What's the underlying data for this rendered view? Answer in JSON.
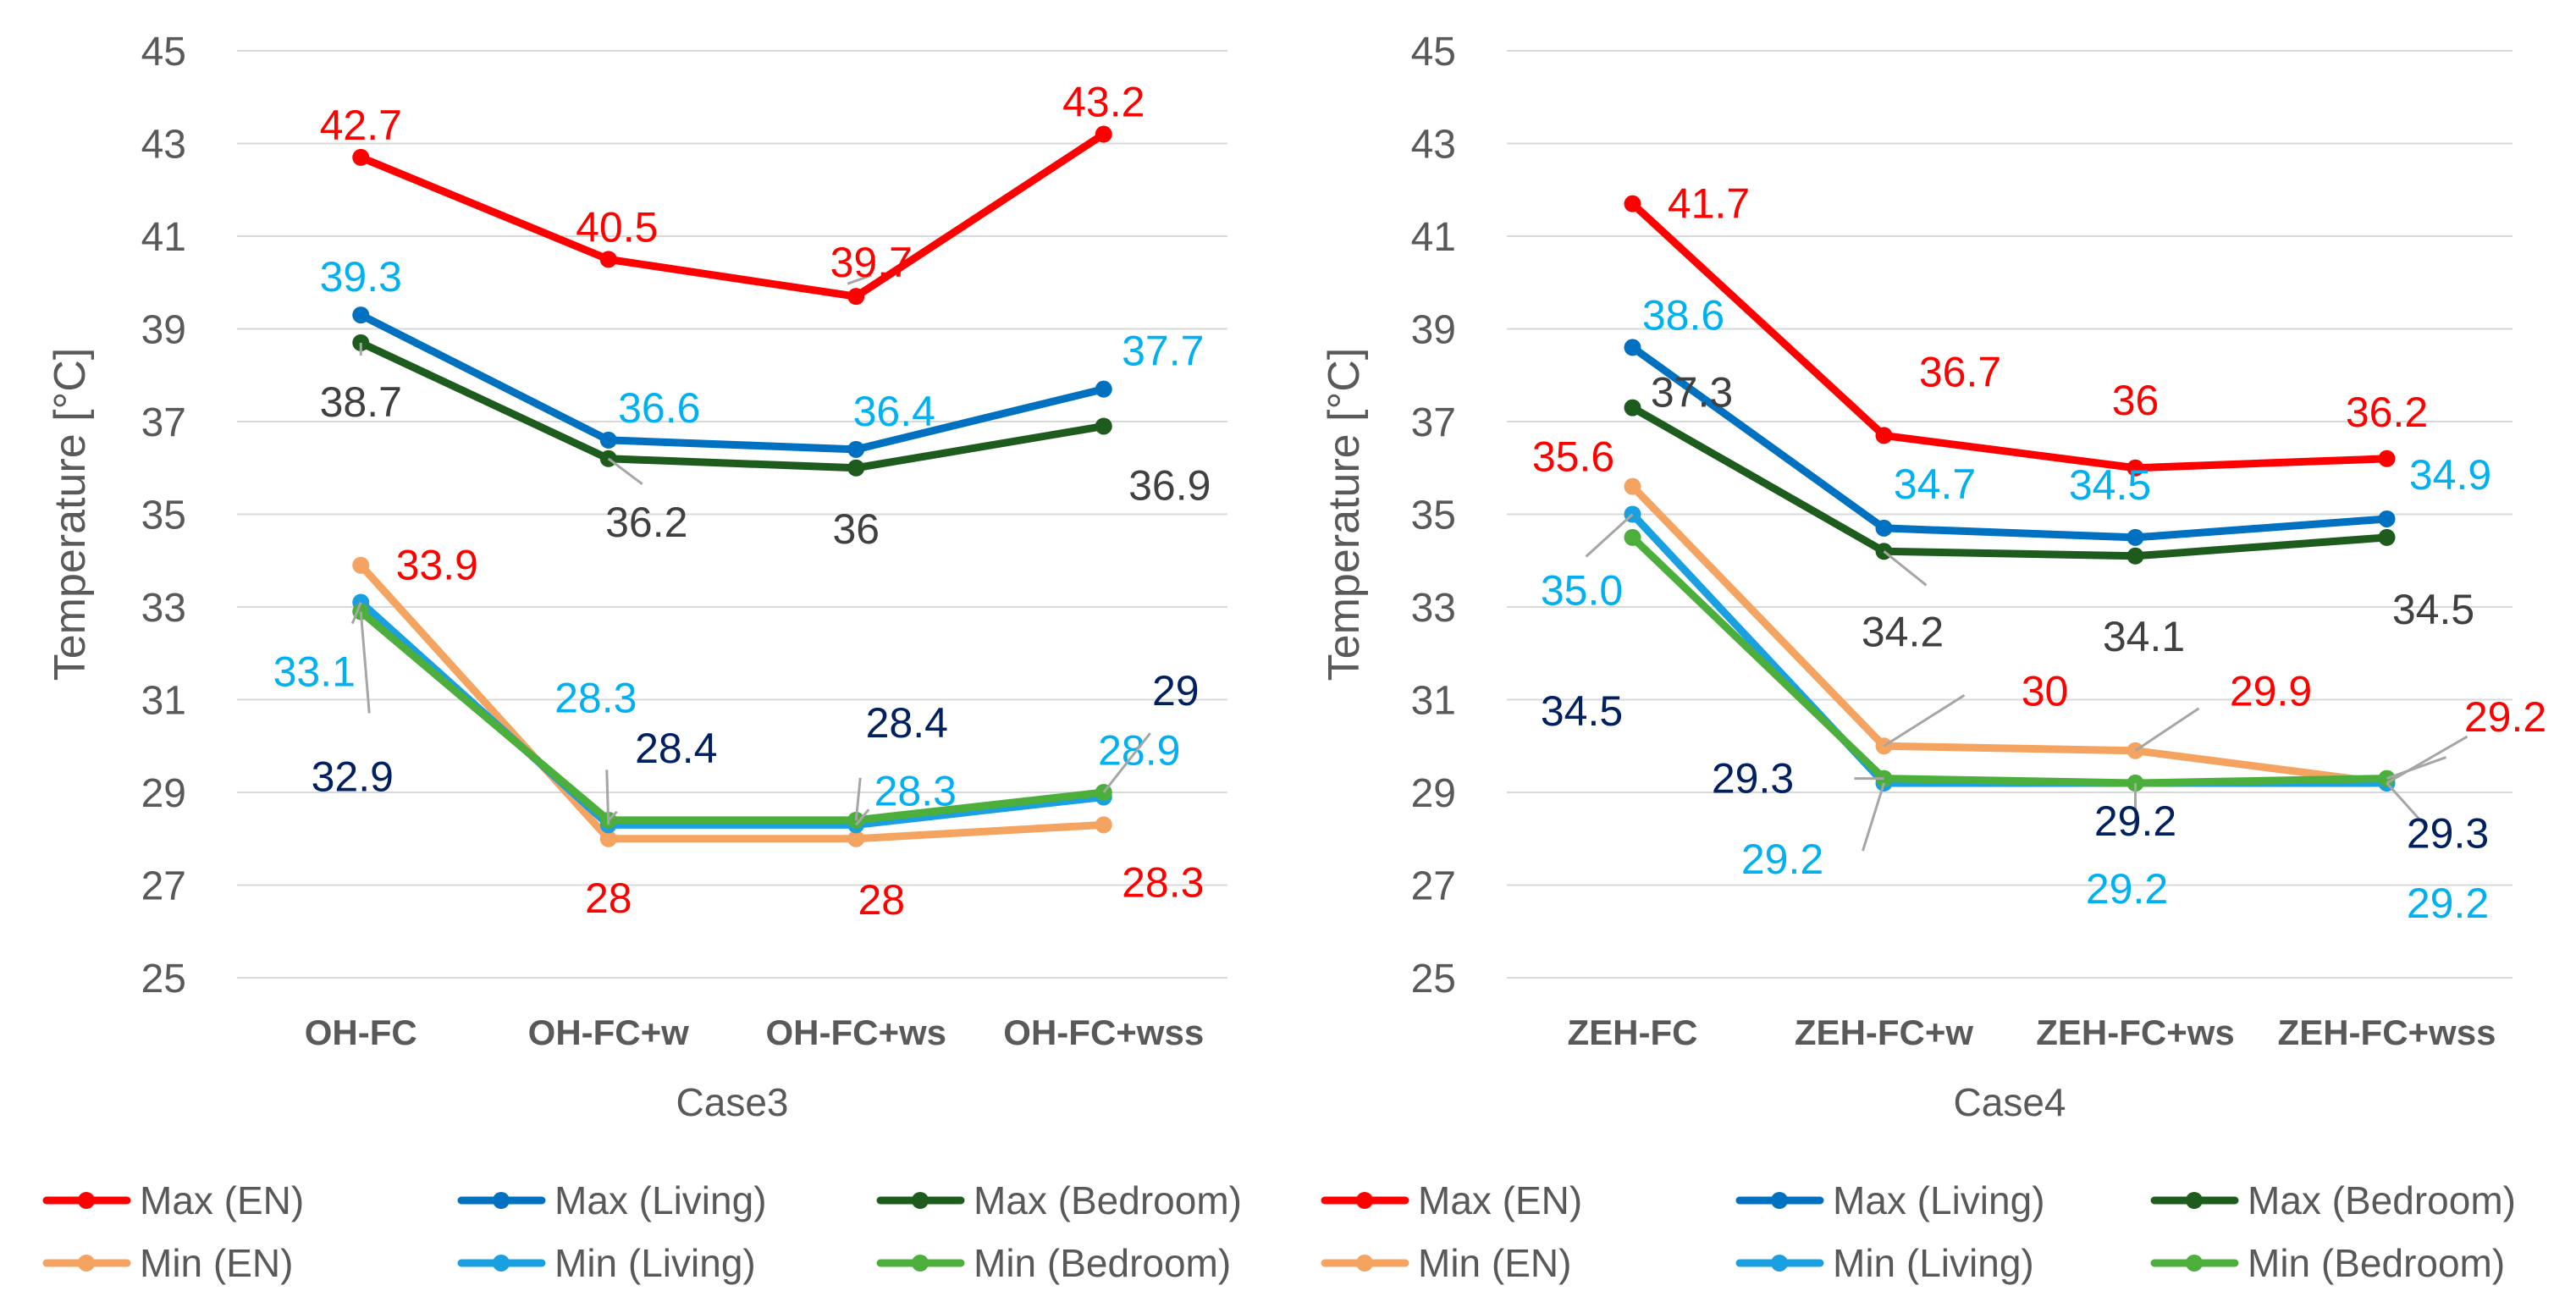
{
  "chart_data": [
    {
      "type": "line",
      "title": "",
      "xlabel": "Case3",
      "ylabel": "Temperature [°C]",
      "ylim": [
        25,
        45
      ],
      "yticks": [
        25,
        27,
        29,
        31,
        33,
        35,
        37,
        39,
        41,
        43,
        45
      ],
      "grid": true,
      "categories": [
        "OH-FC",
        "OH-FC+w",
        "OH-FC+ws",
        "OH-FC+wss"
      ],
      "series": [
        {
          "name": "Max (EN)",
          "color": "#ff0000",
          "values": [
            42.7,
            40.5,
            39.7,
            43.2
          ],
          "labels": [
            "42.7",
            "40.5",
            "39.7",
            "43.2"
          ],
          "label_color": "#ff0000"
        },
        {
          "name": "Max (Living)",
          "color": "#0070c0",
          "values": [
            39.3,
            36.6,
            36.4,
            37.7
          ],
          "labels": [
            "39.3",
            "36.6",
            "36.4",
            "37.7"
          ],
          "label_color": "#00b0f0"
        },
        {
          "name": "Max (Bedroom)",
          "color": "#1e5c1e",
          "values": [
            38.7,
            36.2,
            36.0,
            36.9
          ],
          "labels": [
            "38.7",
            "36.2",
            "36",
            "36.9"
          ],
          "label_color": "#404040"
        },
        {
          "name": "Min (EN)",
          "color": "#f4a460",
          "values": [
            33.9,
            28.0,
            28.0,
            28.3
          ],
          "labels": [
            "33.9",
            "28",
            "28",
            "28.3"
          ],
          "label_color": "#ff0000"
        },
        {
          "name": "Min (Living)",
          "color": "#1aa0e0",
          "values": [
            33.1,
            28.3,
            28.3,
            28.9
          ],
          "labels": [
            "33.1",
            "28.3",
            "28.3",
            "28.9"
          ],
          "label_color": "#00b0f0"
        },
        {
          "name": "Min (Bedroom)",
          "color": "#4caf3c",
          "values": [
            32.9,
            28.4,
            28.4,
            29.0
          ],
          "labels": [
            "32.9",
            "28.4",
            "28.4",
            "29"
          ],
          "label_color": "#002060"
        }
      ]
    },
    {
      "type": "line",
      "title": "",
      "xlabel": "Case4",
      "ylabel": "Temperature [°C]",
      "ylim": [
        25,
        45
      ],
      "yticks": [
        25,
        27,
        29,
        31,
        33,
        35,
        37,
        39,
        41,
        43,
        45
      ],
      "grid": true,
      "categories": [
        "ZEH-FC",
        "ZEH-FC+w",
        "ZEH-FC+ws",
        "ZEH-FC+wss"
      ],
      "series": [
        {
          "name": "Max (EN)",
          "color": "#ff0000",
          "values": [
            41.7,
            36.7,
            36.0,
            36.2
          ],
          "labels": [
            "41.7",
            "36.7",
            "36",
            "36.2"
          ],
          "label_color": "#ff0000"
        },
        {
          "name": "Max (Living)",
          "color": "#0070c0",
          "values": [
            38.6,
            34.7,
            34.5,
            34.9
          ],
          "labels": [
            "38.6",
            "34.7",
            "34.5",
            "34.9"
          ],
          "label_color": "#00b0f0"
        },
        {
          "name": "Max (Bedroom)",
          "color": "#1e5c1e",
          "values": [
            37.3,
            34.2,
            34.1,
            34.5
          ],
          "labels": [
            "37.3",
            "34.2",
            "34.1",
            "34.5"
          ],
          "label_color": "#404040"
        },
        {
          "name": "Min (EN)",
          "color": "#f4a460",
          "values": [
            35.6,
            30.0,
            29.9,
            29.2
          ],
          "labels": [
            "35.6",
            "30",
            "29.9",
            "29.2"
          ],
          "label_color": "#ff0000"
        },
        {
          "name": "Min (Living)",
          "color": "#1aa0e0",
          "values": [
            35.0,
            29.2,
            29.2,
            29.2
          ],
          "labels": [
            "35.0",
            "29.2",
            "29.2",
            "29.2"
          ],
          "label_color": "#00b0f0"
        },
        {
          "name": "Min (Bedroom)",
          "color": "#4caf3c",
          "values": [
            34.5,
            29.3,
            29.2,
            29.3
          ],
          "labels": [
            "34.5",
            "29.3",
            "29.2",
            "29.3"
          ],
          "label_color": "#002060"
        }
      ]
    }
  ],
  "legend": {
    "placement": "bottom",
    "items": [
      {
        "name": "Max (EN)",
        "color": "#ff0000"
      },
      {
        "name": "Max (Living)",
        "color": "#0070c0"
      },
      {
        "name": "Max (Bedroom)",
        "color": "#1e5c1e"
      },
      {
        "name": "Max (EN)",
        "color": "#ff0000"
      },
      {
        "name": "Max (Living)",
        "color": "#0070c0"
      },
      {
        "name": "Max (Bedroom)",
        "color": "#1e5c1e"
      },
      {
        "name": "Min (EN)",
        "color": "#f4a460"
      },
      {
        "name": "Min (Living)",
        "color": "#1aa0e0"
      },
      {
        "name": "Min (Bedroom)",
        "color": "#4caf3c"
      },
      {
        "name": "Min (EN)",
        "color": "#f4a460"
      },
      {
        "name": "Min (Living)",
        "color": "#1aa0e0"
      },
      {
        "name": "Min (Bedroom)",
        "color": "#4caf3c"
      }
    ]
  },
  "colors": {
    "grid": "#d9d9d9",
    "tick_text": "#595959",
    "category_text": "#595959",
    "axis_title": "#595959",
    "legend_text": "#595959",
    "leader": "#a6a6a6"
  }
}
